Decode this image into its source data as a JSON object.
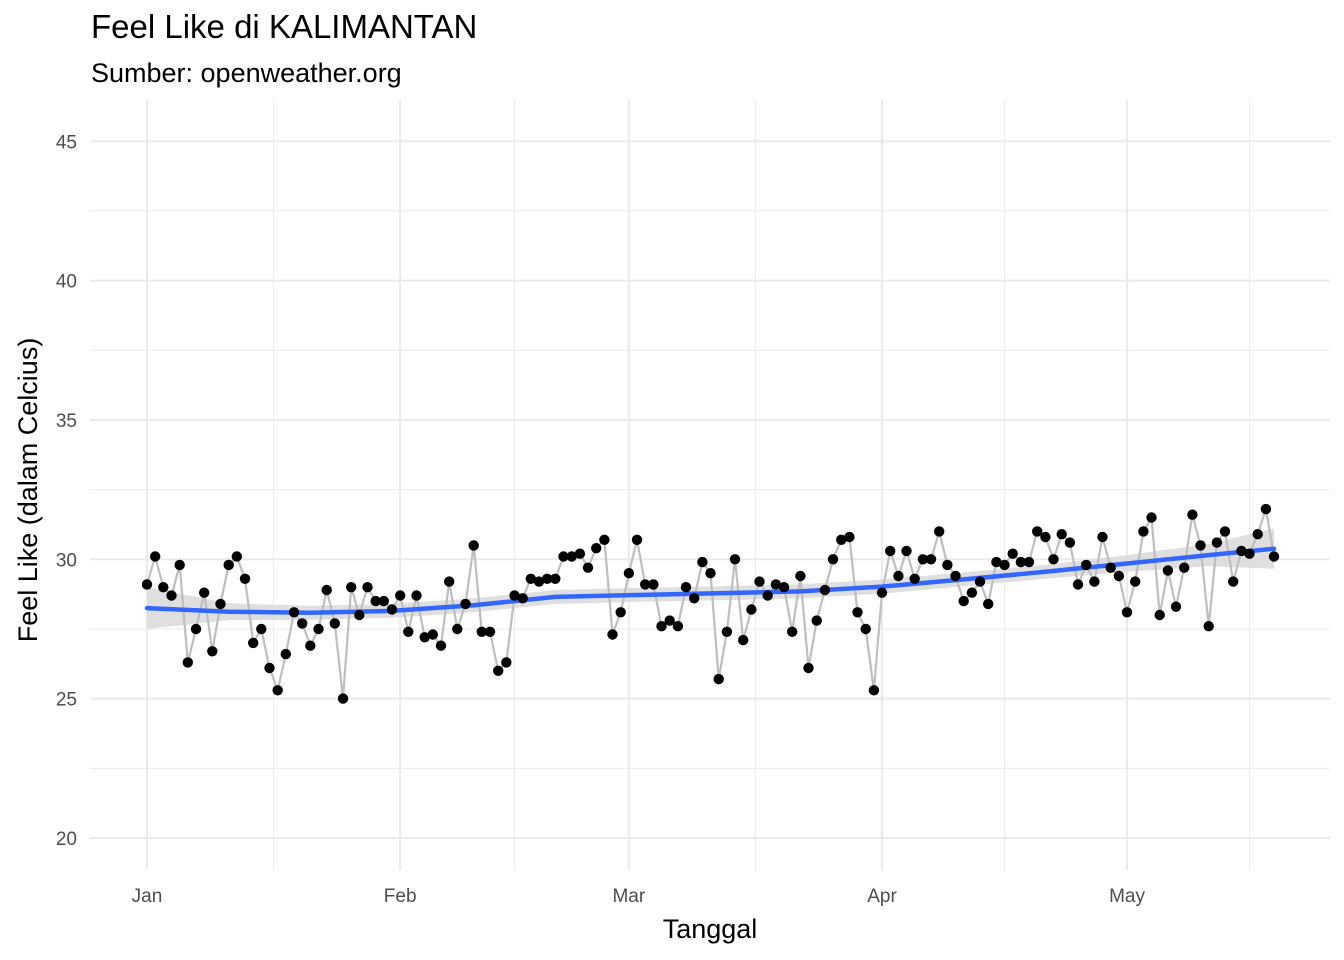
{
  "header": {
    "title": "Feel Like di KALIMANTAN",
    "subtitle": "Sumber: openweather.org"
  },
  "chart_data": {
    "type": "line",
    "title": "Feel Like di KALIMANTAN",
    "subtitle": "Sumber: openweather.org",
    "xlabel": "Tanggal",
    "ylabel": "Feel Like (dalam Celcius)",
    "x_ticks": [
      "Jan",
      "Feb",
      "Mar",
      "Apr",
      "May"
    ],
    "y_ticks": [
      20,
      25,
      30,
      35,
      40,
      45
    ],
    "xlim": [
      "2023-01-01",
      "2023-05-19"
    ],
    "ylim": [
      19,
      46
    ],
    "grid": true,
    "series": [
      {
        "values": [
          29.1,
          30.1,
          29.0,
          28.7,
          29.8,
          26.3,
          27.5,
          28.8,
          26.7,
          28.4,
          29.8,
          30.1,
          29.3,
          27.0,
          27.5,
          26.1,
          25.3,
          26.6,
          28.1,
          27.7,
          26.9,
          27.5,
          28.9,
          27.7,
          25.0,
          29.0,
          28.0,
          29.0,
          28.5,
          28.5,
          28.2,
          28.7,
          27.4,
          28.7,
          27.2,
          27.3,
          26.9,
          29.2,
          27.5,
          28.4,
          30.5,
          27.4,
          27.4,
          26.0,
          26.3,
          28.7,
          28.6,
          29.3,
          29.2,
          29.3,
          29.3,
          30.1,
          30.1,
          30.2,
          29.7,
          30.4,
          30.7,
          27.3,
          28.1,
          29.5,
          30.7,
          29.1,
          29.1,
          27.6,
          27.8,
          27.6,
          29.0,
          28.6,
          29.9,
          29.5,
          25.7,
          27.4,
          30.0,
          27.1,
          28.2,
          29.2,
          28.7,
          29.1,
          29.0,
          27.4,
          29.4,
          26.1,
          27.8,
          28.9,
          30.0,
          30.7,
          30.8,
          28.1,
          27.5,
          25.3,
          28.8,
          30.3,
          29.4,
          30.3,
          29.3,
          30.0,
          30.0,
          31.0,
          29.8,
          29.4,
          28.5,
          28.8,
          29.2,
          28.4,
          29.9,
          29.8,
          30.2,
          29.9,
          29.9,
          31.0,
          30.8,
          30.0,
          30.9,
          30.6,
          29.1,
          29.8,
          29.2,
          30.8,
          29.7,
          29.4,
          28.1,
          29.2,
          31.0,
          31.5,
          28.0,
          29.6,
          28.3,
          29.7,
          31.6,
          30.5,
          27.6,
          30.6,
          31.0,
          29.2,
          30.3,
          30.2,
          30.9,
          31.8,
          30.1
        ]
      },
      {
        "name": "smooth",
        "color": "#3366FF",
        "x_days": [
          0,
          10,
          20,
          30,
          40,
          50,
          60,
          70,
          80,
          90,
          100,
          110,
          120,
          130,
          138
        ],
        "values": [
          28.25,
          28.12,
          28.08,
          28.15,
          28.35,
          28.65,
          28.72,
          28.78,
          28.85,
          29.02,
          29.28,
          29.55,
          29.85,
          30.15,
          30.38
        ],
        "band": [
          0.75,
          0.3,
          0.25,
          0.25,
          0.25,
          0.25,
          0.25,
          0.25,
          0.25,
          0.25,
          0.25,
          0.25,
          0.3,
          0.4,
          0.72
        ]
      }
    ],
    "colors": {
      "points": "#000000",
      "line": "#BEBEBE",
      "smooth": "#3366FF",
      "band": "#D9D9D9",
      "grid_major": "#EBEBEB"
    }
  }
}
